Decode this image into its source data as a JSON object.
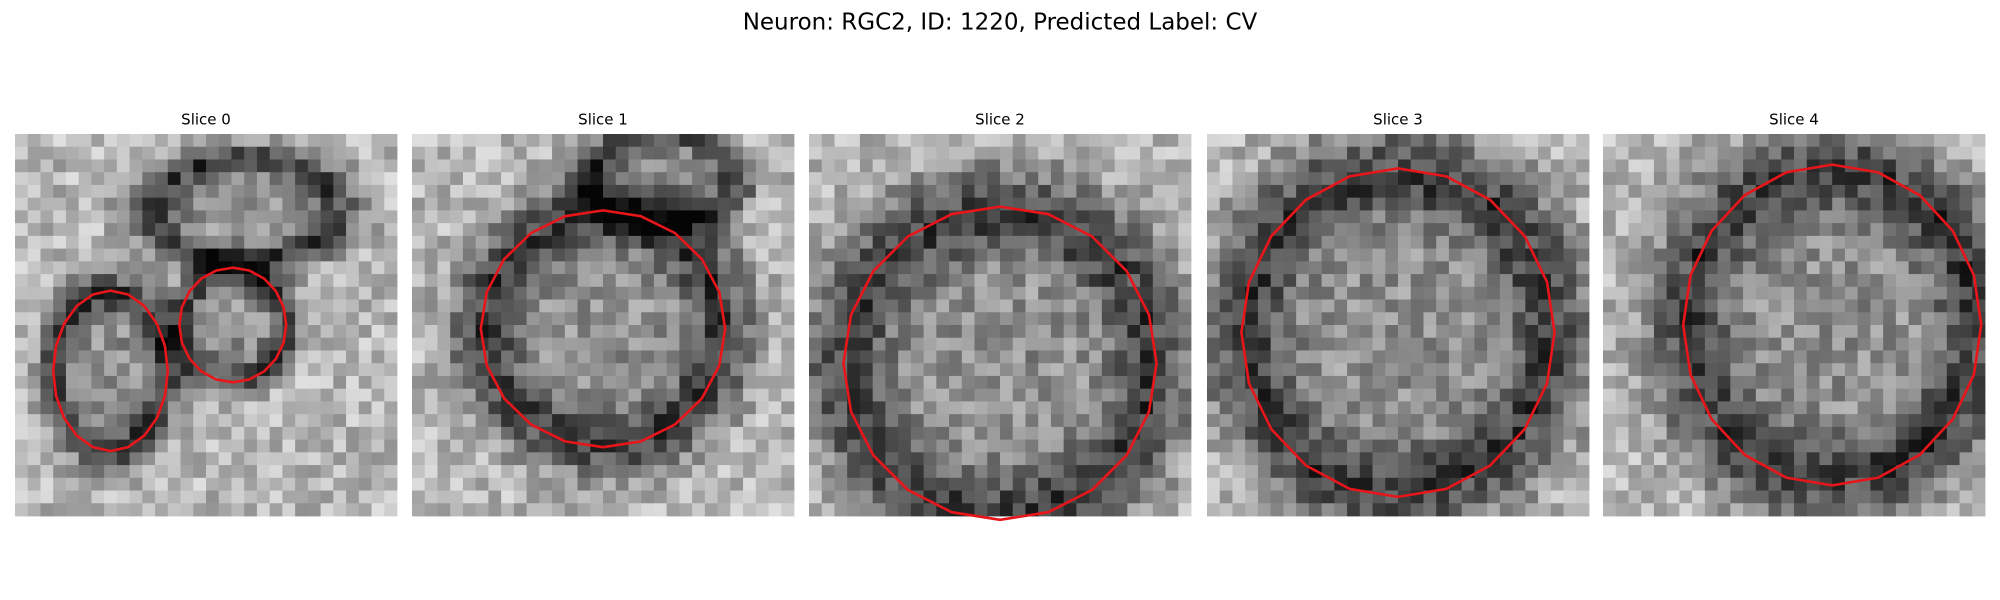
{
  "header": {
    "title": "Neuron: RGC2, ID: 1220, Predicted Label: CV"
  },
  "panels": [
    {
      "title": "Slice 0"
    },
    {
      "title": "Slice 1"
    },
    {
      "title": "Slice 2"
    },
    {
      "title": "Slice 3"
    },
    {
      "title": "Slice 4"
    }
  ]
}
